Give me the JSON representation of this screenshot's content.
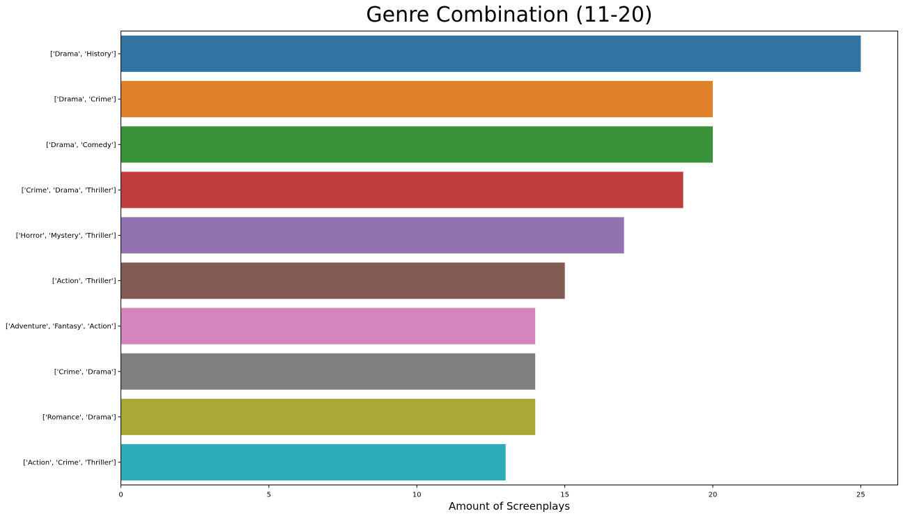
{
  "chart_data": {
    "type": "bar",
    "orientation": "horizontal",
    "title": "Genre Combination (11-20)",
    "xlabel": "Amount of Screenplays",
    "ylabel": "",
    "xlim": [
      0,
      26.25
    ],
    "xticks": [
      0,
      5,
      10,
      15,
      20,
      25
    ],
    "grid": false,
    "legend": "none",
    "categories": [
      "['Drama', 'History']",
      "['Drama', 'Crime']",
      "['Drama', 'Comedy']",
      "['Crime', 'Drama', 'Thriller']",
      "['Horror', 'Mystery', 'Thriller']",
      "['Action', 'Thriller']",
      "['Adventure', 'Fantasy', 'Action']",
      "['Crime', 'Drama']",
      "['Romance', 'Drama']",
      "['Action', 'Crime', 'Thriller']"
    ],
    "values": [
      25,
      20,
      20,
      19,
      17,
      15,
      14,
      14,
      14,
      13
    ],
    "colors": [
      "#3274a1",
      "#e1812c",
      "#3a923a",
      "#c03d3e",
      "#9372b2",
      "#845b53",
      "#d684bd",
      "#7f7f7f",
      "#a9aa35",
      "#2eabb8"
    ]
  }
}
